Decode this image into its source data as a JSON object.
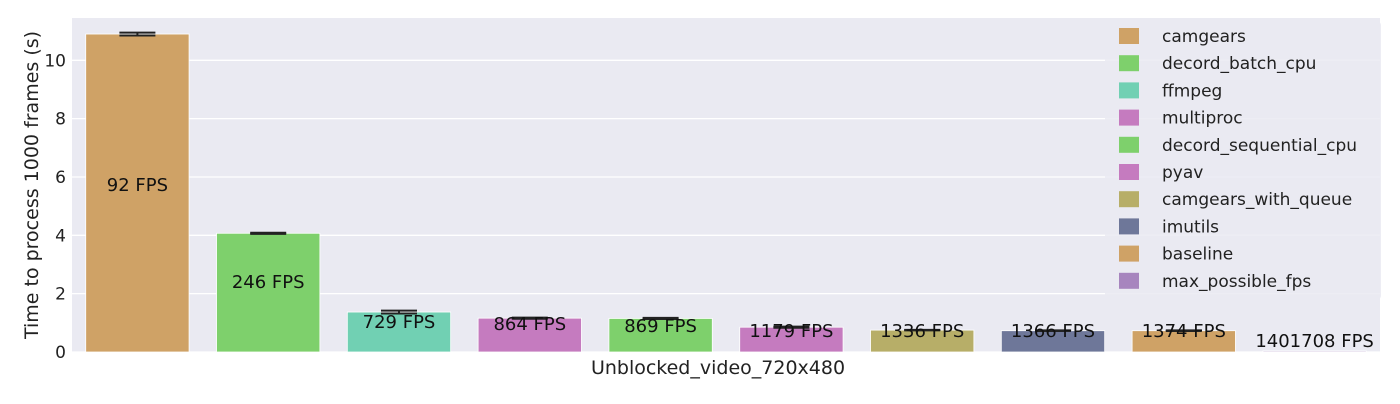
{
  "chart_data": {
    "type": "bar",
    "xlabel": "Unblocked_video_720x480",
    "ylabel": "Time to process 1000 frames (s)",
    "ylim": [
      0,
      11.45
    ],
    "yticks": [
      0,
      2,
      4,
      6,
      8,
      10
    ],
    "grid": true,
    "legend_position": "top-right",
    "series": [
      {
        "name": "camgears",
        "value": 10.9,
        "error": 0.05,
        "label": "92 FPS",
        "color": "#CFA266"
      },
      {
        "name": "decord_batch_cpu",
        "value": 4.07,
        "error": 0.02,
        "label": "246 FPS",
        "color": "#7ED06C"
      },
      {
        "name": "ffmpeg",
        "value": 1.37,
        "error": 0.05,
        "label": "729 FPS",
        "color": "#71D0B3"
      },
      {
        "name": "multiproc",
        "value": 1.16,
        "error": 0.02,
        "label": "864 FPS",
        "color": "#C57BBF"
      },
      {
        "name": "decord_sequential_cpu",
        "value": 1.15,
        "error": 0.02,
        "label": "869 FPS",
        "color": "#7ED06C"
      },
      {
        "name": "pyav",
        "value": 0.85,
        "error": 0.02,
        "label": "1179 FPS",
        "color": "#C57BBF"
      },
      {
        "name": "camgears_with_queue",
        "value": 0.75,
        "error": 0.01,
        "label": "1336 FPS",
        "color": "#B7AE68"
      },
      {
        "name": "imutils",
        "value": 0.73,
        "error": 0.01,
        "label": "1366 FPS",
        "color": "#6E7799"
      },
      {
        "name": "baseline",
        "value": 0.73,
        "error": 0.01,
        "label": "1374 FPS",
        "color": "#CFA266"
      },
      {
        "name": "max_possible_fps",
        "value": 0.0007,
        "error": 0,
        "label": "1401708 FPS",
        "color": "#A785BE"
      }
    ]
  }
}
